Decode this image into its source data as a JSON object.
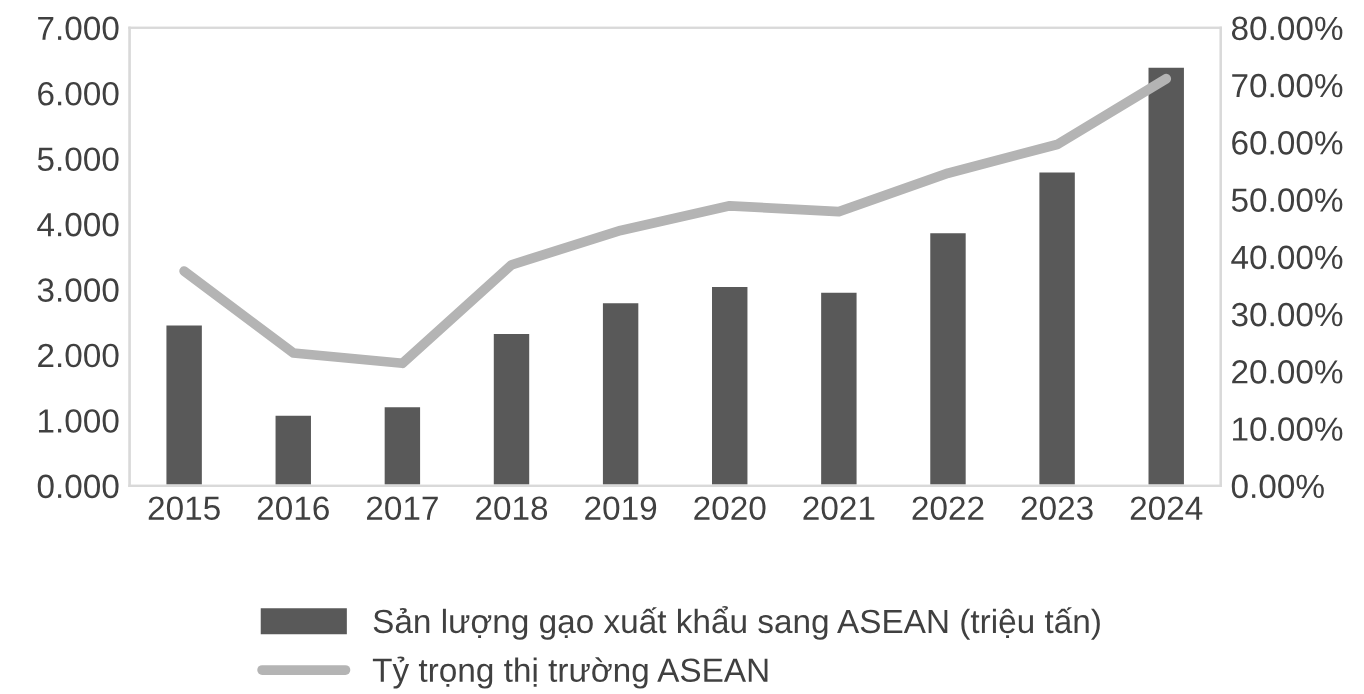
{
  "chart_data": {
    "type": "bar",
    "categories": [
      "2015",
      "2016",
      "2017",
      "2018",
      "2019",
      "2020",
      "2021",
      "2022",
      "2023",
      "2024"
    ],
    "series": [
      {
        "name": "Sản lượng gạo xuất khẩu sang ASEAN (triệu tấn)",
        "color": "#595959",
        "values": [
          2.47,
          1.09,
          1.22,
          2.34,
          2.81,
          3.06,
          2.97,
          3.88,
          4.81,
          6.41
        ]
      },
      {
        "name": "Tỷ trọng thị trường ASEAN",
        "type": "line",
        "axis": "y2",
        "color": "#b4b4b4",
        "values": [
          37.5,
          23.2,
          21.4,
          38.6,
          44.6,
          48.9,
          47.9,
          54.6,
          59.6,
          71.1
        ]
      }
    ],
    "ylim": [
      0,
      7
    ],
    "yticks": [
      {
        "value": 0,
        "label": "0.000"
      },
      {
        "value": 1,
        "label": "1.000"
      },
      {
        "value": 2,
        "label": "2.000"
      },
      {
        "value": 3,
        "label": "3.000"
      },
      {
        "value": 4,
        "label": "4.000"
      },
      {
        "value": 5,
        "label": "5.000"
      },
      {
        "value": 6,
        "label": "6.000"
      },
      {
        "value": 7,
        "label": "7.000"
      }
    ],
    "y2lim": [
      0,
      80
    ],
    "y2ticks": [
      {
        "value": 0,
        "label": "0.00%"
      },
      {
        "value": 10,
        "label": "10.00%"
      },
      {
        "value": 20,
        "label": "20.00%"
      },
      {
        "value": 30,
        "label": "30.00%"
      },
      {
        "value": 40,
        "label": "40.00%"
      },
      {
        "value": 50,
        "label": "50.00%"
      },
      {
        "value": 60,
        "label": "60.00%"
      },
      {
        "value": 70,
        "label": "70.00%"
      },
      {
        "value": 80,
        "label": "80.00%"
      }
    ],
    "grid": false,
    "legend": "bottom",
    "marker": "none",
    "line_style": "solid"
  }
}
